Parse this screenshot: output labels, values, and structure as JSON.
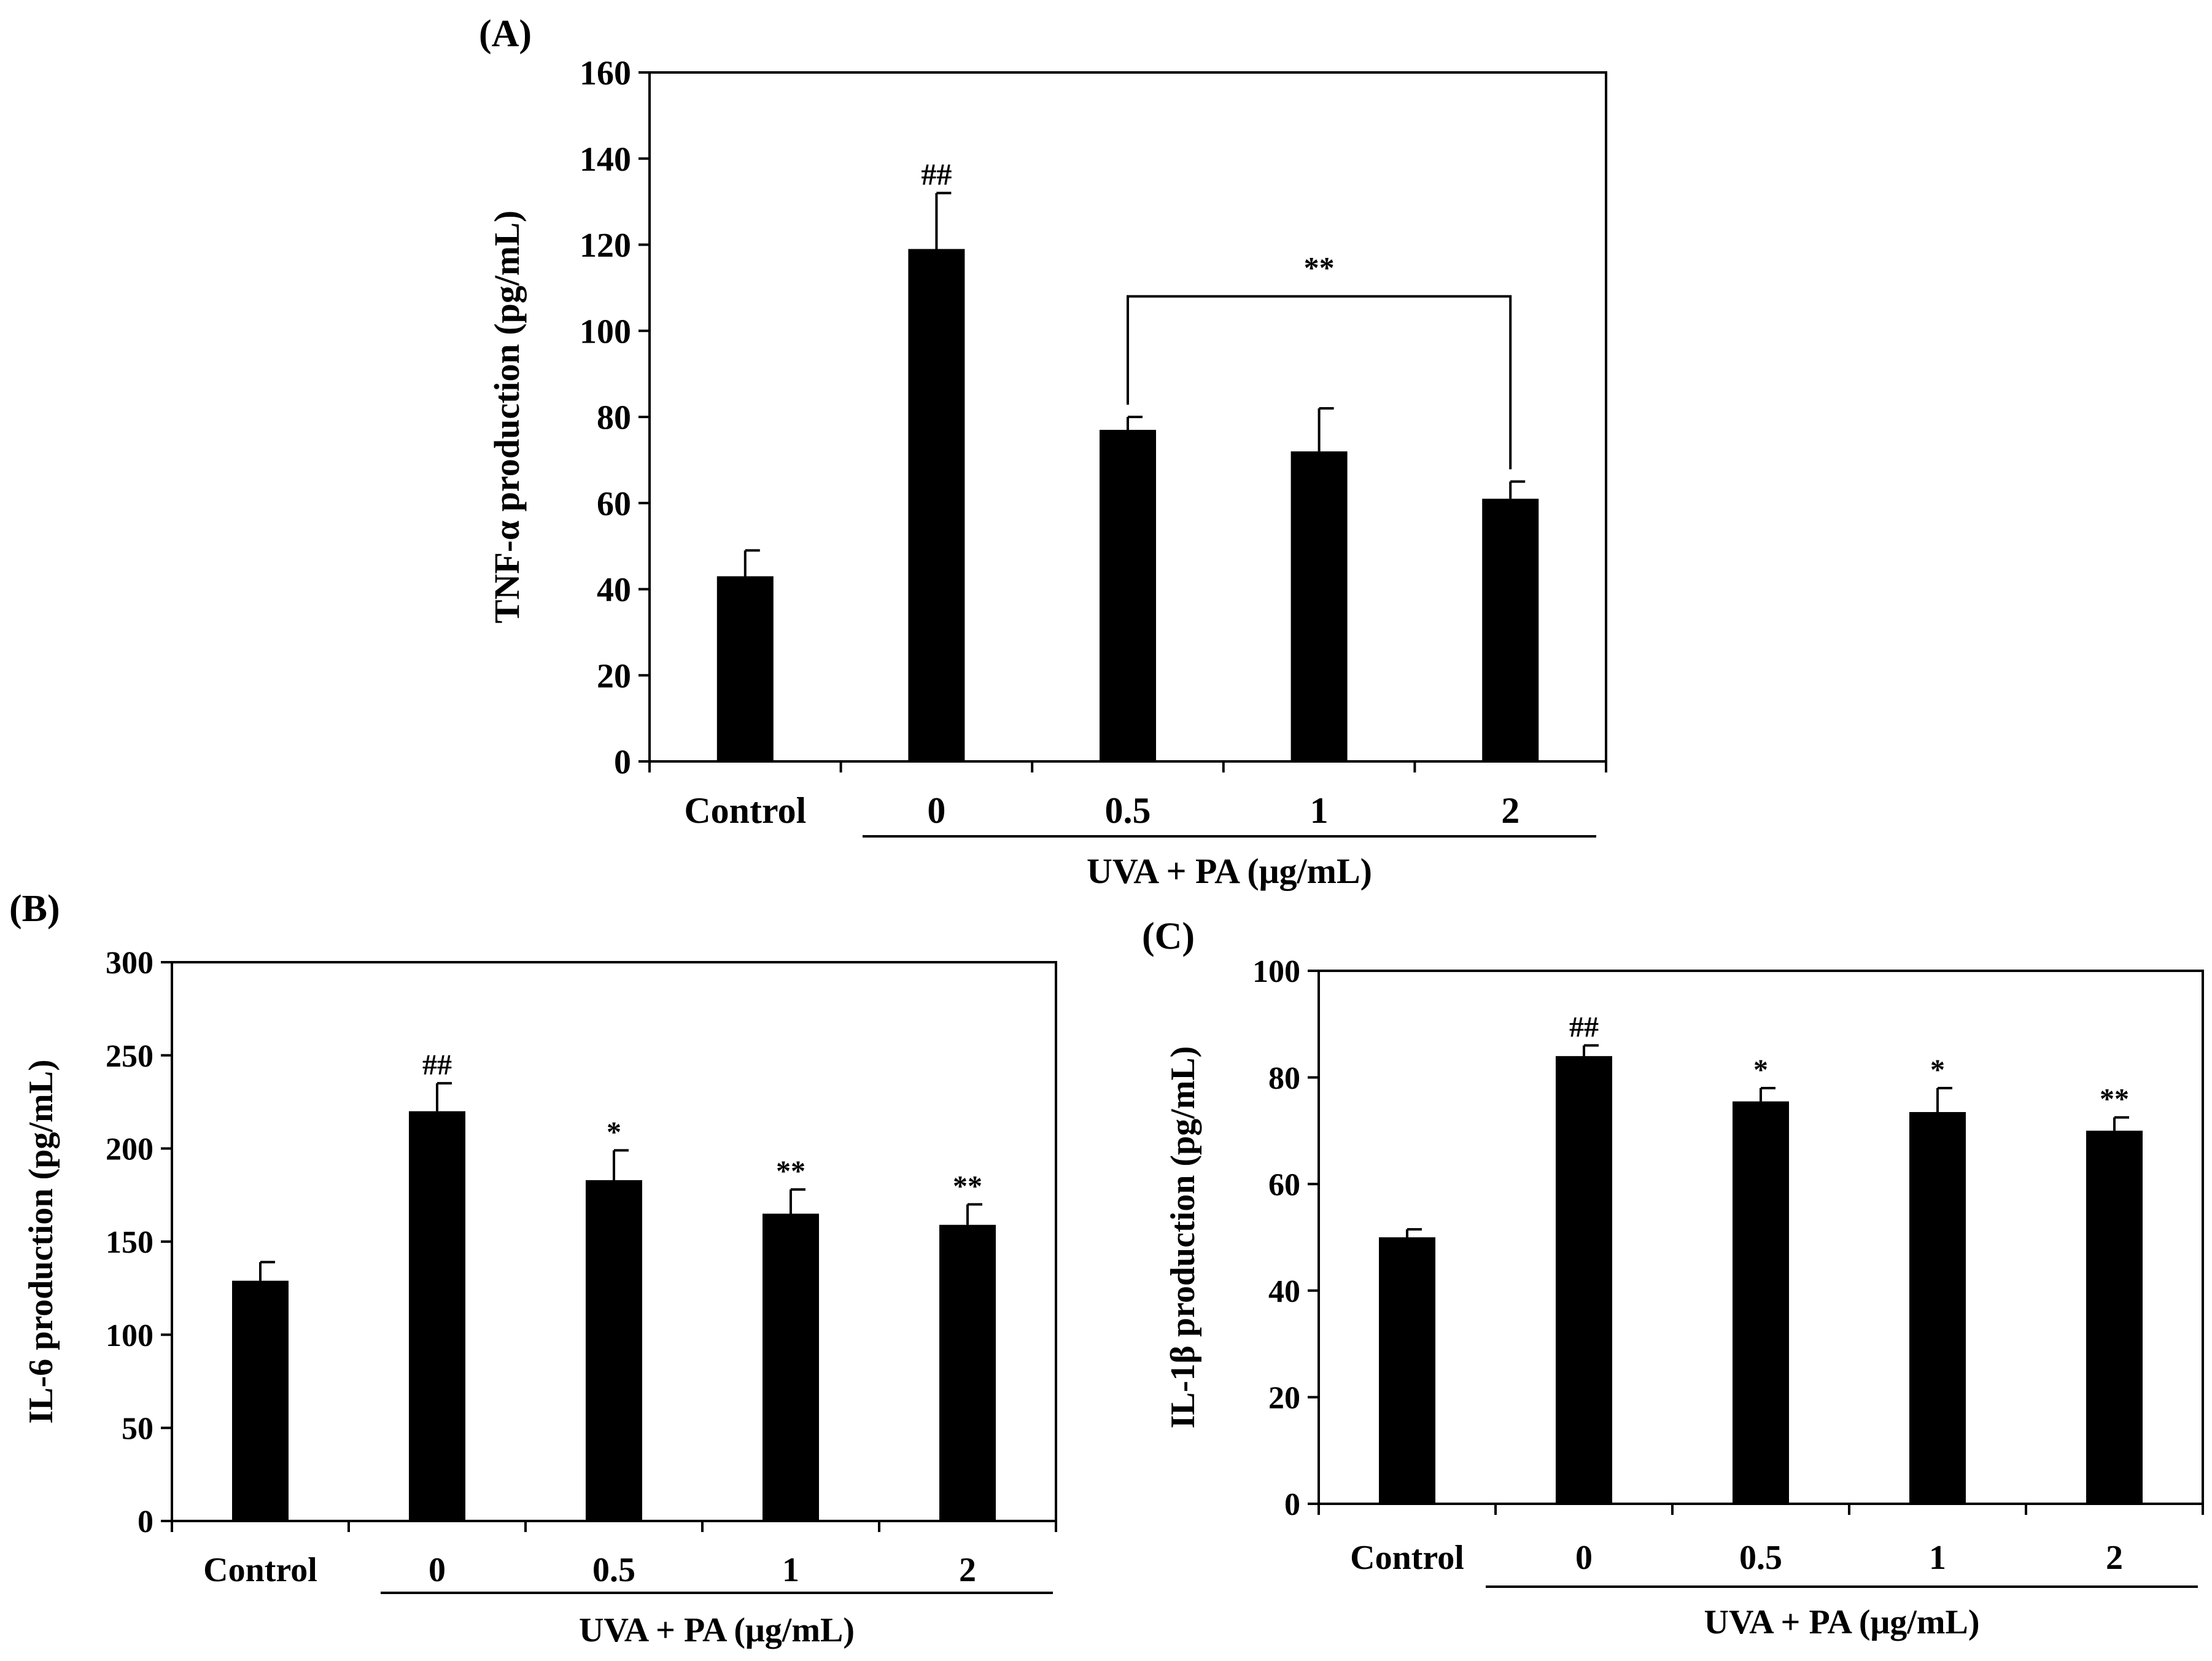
{
  "figure": {
    "panels": [
      "(A)",
      "(B)",
      "(C)"
    ]
  },
  "chart_data": [
    {
      "type": "bar",
      "panel": "(A)",
      "categories": [
        "Control",
        "0",
        "0.5",
        "1",
        "2"
      ],
      "values": [
        43,
        119,
        77,
        72,
        61
      ],
      "errors": [
        6,
        13,
        3,
        10,
        4
      ],
      "annotations": [
        "",
        "##",
        "",
        "",
        ""
      ],
      "bracket": {
        "from": 2,
        "to": 4,
        "label": "**"
      },
      "group_label": "UVA + PA (μg/mL)",
      "ylabel": "TNF-α production  (pg/mL)",
      "ylim": [
        0,
        160
      ],
      "yticks": [
        0,
        20,
        40,
        60,
        80,
        100,
        120,
        140,
        160
      ],
      "bar_color": "#000000"
    },
    {
      "type": "bar",
      "panel": "(B)",
      "categories": [
        "Control",
        "0",
        "0.5",
        "1",
        "2"
      ],
      "values": [
        129,
        220,
        183,
        165,
        159
      ],
      "errors": [
        10,
        15,
        16,
        13,
        11
      ],
      "annotations": [
        "",
        "##",
        "*",
        "**",
        "**"
      ],
      "group_label": "UVA + PA (μg/mL)",
      "ylabel": "IL-6 production  (pg/mL)",
      "ylim": [
        0,
        300
      ],
      "yticks": [
        0,
        50,
        100,
        150,
        200,
        250,
        300
      ],
      "bar_color": "#000000"
    },
    {
      "type": "bar",
      "panel": "(C)",
      "categories": [
        "Control",
        "0",
        "0.5",
        "1",
        "2"
      ],
      "values": [
        50,
        84,
        75.5,
        73.5,
        70
      ],
      "errors": [
        1.5,
        2,
        2.5,
        4.5,
        2.5
      ],
      "annotations": [
        "",
        "##",
        "*",
        "*",
        "**"
      ],
      "group_label": "UVA + PA (μg/mL)",
      "ylabel": "IL-1β production  (pg/mL)",
      "ylim": [
        0,
        100
      ],
      "yticks": [
        0,
        20,
        40,
        60,
        80,
        100
      ],
      "bar_color": "#000000"
    }
  ]
}
